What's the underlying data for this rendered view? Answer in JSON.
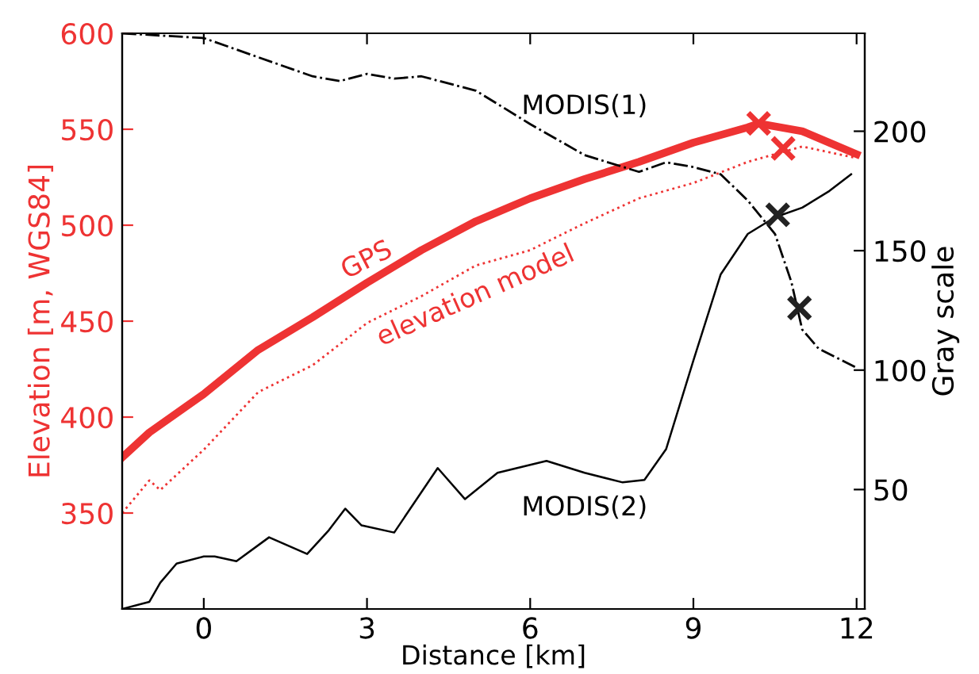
{
  "chart_data": {
    "type": "line",
    "xlabel": "Distance [km]",
    "ylabel": "Elevation [m, WGS84]",
    "y2label": "Gray scale",
    "xlim": [
      -1.5,
      12.15
    ],
    "xticks": [
      0,
      3,
      6,
      9,
      12
    ],
    "ylim": [
      300,
      600
    ],
    "yticks": [
      350,
      400,
      450,
      500,
      550,
      600
    ],
    "y2lim": [
      0,
      241
    ],
    "y2ticks": [
      50,
      100,
      150,
      200
    ],
    "grid": false,
    "legend": false,
    "series": [
      {
        "name": "GPS",
        "color": "#ee3333",
        "line_style": "solid",
        "x": [
          -1.5,
          -1,
          0,
          1,
          2,
          3,
          4,
          5,
          6,
          7,
          8,
          9,
          10,
          10.2,
          11,
          11.5,
          12
        ],
        "values": [
          379,
          392,
          412,
          435,
          452,
          470,
          487,
          502,
          514,
          524,
          533,
          543,
          551,
          553,
          549,
          543,
          537
        ]
      },
      {
        "name": "elevation model",
        "color": "#ee3333",
        "line_style": "dotted",
        "x": [
          -1.5,
          -1,
          -0.8,
          0,
          1,
          2,
          3,
          4,
          5,
          6,
          7,
          8,
          9,
          10,
          11,
          12
        ],
        "values": [
          350,
          367,
          362,
          383,
          413,
          427,
          449,
          463,
          479,
          487,
          501,
          514,
          522,
          533,
          541,
          535
        ]
      },
      {
        "name": "MODIS(1)",
        "color": "#000000",
        "line_style": "dashdot",
        "axis": "y2",
        "x": [
          -1.5,
          0,
          1,
          2,
          2.5,
          3,
          3.5,
          4,
          5,
          5.5,
          6,
          7,
          8,
          8.5,
          9,
          9.5,
          10,
          10.5,
          10.8,
          11,
          11.3,
          12
        ],
        "values": [
          241,
          239,
          231,
          223,
          221,
          224,
          222,
          223,
          217,
          210,
          203,
          190,
          183,
          187,
          185,
          182,
          171,
          157,
          137,
          117,
          109,
          101
        ]
      },
      {
        "name": "MODIS(2)",
        "color": "#000000",
        "line_style": "solid",
        "axis": "y2",
        "x": [
          -1.5,
          -1,
          -0.8,
          -0.5,
          0,
          0.2,
          0.6,
          1.2,
          1.9,
          2.3,
          2.6,
          2.9,
          3.5,
          4.3,
          4.8,
          5.4,
          6.3,
          7,
          7.7,
          8.1,
          8.5,
          9,
          9.5,
          10,
          10.5,
          11,
          11.5,
          11.9
        ],
        "values": [
          0,
          3,
          11,
          19,
          22,
          22,
          20,
          30,
          23,
          33,
          42,
          35,
          32,
          59,
          46,
          57,
          62,
          57,
          53,
          54,
          67,
          104,
          140,
          157,
          164,
          168,
          175,
          182
        ]
      },
      {
        "type": "scatter",
        "marker": "cross",
        "color": "#ee3333",
        "x": [
          10.2,
          10.65
        ],
        "values": [
          553,
          540
        ]
      },
      {
        "type": "scatter",
        "marker": "cross",
        "color": "#222222",
        "axis": "y2",
        "x": [
          10.55,
          10.95
        ],
        "values": [
          165,
          126
        ]
      }
    ]
  }
}
